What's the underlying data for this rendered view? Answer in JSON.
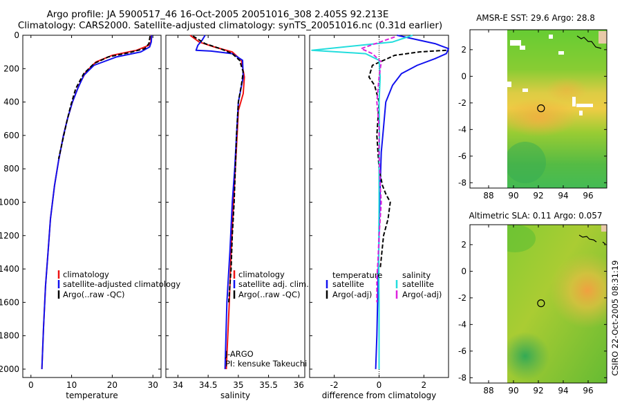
{
  "header": {
    "line1": "Argo profile: JA 5900517_46 16-Oct-2005 20051016_308 2.405S 92.213E",
    "line2": "Climatology: CARS2000. Satellite-adjusted climatology: synTS_20051016.nc (0.31d earlier)"
  },
  "side_label": "CSIRO 22-Oct-2005 08:31:19",
  "colors": {
    "red": "#ee1111",
    "blue": "#1111ee",
    "black": "#000000",
    "cyan": "#22dddd",
    "magenta": "#dd22dd"
  },
  "chart_data": [
    {
      "type": "line",
      "id": "temperature",
      "xlabel": "temperature",
      "ylabel": "",
      "xlim": [
        -2,
        32
      ],
      "ylim": [
        2050,
        0
      ],
      "y_reversed": true,
      "xticks": [
        0,
        10,
        20,
        30
      ],
      "yticks": [
        0,
        200,
        400,
        600,
        800,
        1000,
        1200,
        1400,
        1600,
        1800,
        2000
      ],
      "legend": {
        "placement": "bottom-center",
        "entries": [
          "climatology",
          "satellite-adjusted climatology",
          "Argo(..raw -QC)"
        ]
      },
      "series": [
        {
          "name": "climatology",
          "color": "red",
          "dash": false,
          "x": [
            29.6,
            29.5,
            29.0,
            26.0,
            20.0,
            16.0,
            13.5,
            11.8,
            10.2,
            9.0,
            8.0,
            6.8,
            5.8,
            4.8,
            4.2,
            3.6,
            3.1,
            2.7
          ],
          "y": [
            0,
            40,
            60,
            90,
            120,
            160,
            220,
            300,
            400,
            500,
            600,
            750,
            900,
            1100,
            1300,
            1500,
            1750,
            2000
          ]
        },
        {
          "name": "satellite-adjusted climatology",
          "color": "blue",
          "dash": false,
          "x": [
            29.7,
            29.6,
            29.2,
            27.0,
            21.0,
            15.5,
            13.0,
            11.5,
            10.2,
            9.0,
            8.0,
            6.8,
            5.8,
            4.8,
            4.2,
            3.6,
            3.1,
            2.7
          ],
          "y": [
            0,
            40,
            70,
            100,
            130,
            180,
            240,
            320,
            400,
            500,
            600,
            750,
            900,
            1100,
            1300,
            1500,
            1750,
            2000
          ]
        },
        {
          "name": "Argo(..raw -QC)",
          "color": "black",
          "dash": true,
          "x": [
            29.3,
            29.0,
            28.0,
            24.0,
            19.0,
            15.5,
            13.0,
            11.0,
            9.8,
            8.8,
            7.9,
            6.8
          ],
          "y": [
            5,
            50,
            80,
            105,
            130,
            170,
            230,
            320,
            420,
            520,
            620,
            740
          ]
        }
      ]
    },
    {
      "type": "line",
      "id": "salinity",
      "xlabel": "salinity",
      "xlim": [
        33.8,
        36.1
      ],
      "ylim": [
        2050,
        0
      ],
      "y_reversed": true,
      "xticks": [
        34,
        34.5,
        35,
        35.5,
        36
      ],
      "yticks": [],
      "legend": {
        "placement": "bottom-center",
        "entries": [
          "climatology",
          "satellite adj. clim.",
          "Argo(..raw -QC)"
        ]
      },
      "annotation": [
        "J-ARGO",
        "PI: kensuke Takeuchi"
      ],
      "series": [
        {
          "name": "climatology",
          "color": "red",
          "dash": false,
          "x": [
            34.2,
            34.35,
            34.6,
            34.9,
            35.05,
            35.1,
            35.08,
            35.0,
            34.98,
            34.95,
            34.92,
            34.88,
            34.85,
            34.8
          ],
          "y": [
            0,
            40,
            70,
            100,
            150,
            250,
            350,
            450,
            600,
            800,
            1000,
            1300,
            1600,
            2000
          ]
        },
        {
          "name": "satellite adj. clim.",
          "color": "blue",
          "dash": false,
          "x": [
            34.45,
            34.4,
            34.33,
            34.3,
            34.55,
            34.9,
            35.07,
            35.08,
            35.0,
            34.97,
            34.94,
            34.9,
            34.86,
            34.81,
            34.78
          ],
          "y": [
            0,
            30,
            60,
            90,
            95,
            110,
            150,
            250,
            400,
            600,
            800,
            1000,
            1300,
            1600,
            2000
          ]
        },
        {
          "name": "Argo(..raw -QC)",
          "color": "black",
          "dash": true,
          "x": [
            34.25,
            34.45,
            34.7,
            34.9,
            35.02,
            35.08,
            35.05,
            35.0,
            34.97,
            34.95,
            34.93,
            34.9,
            34.88,
            34.86,
            34.84
          ],
          "y": [
            5,
            50,
            80,
            110,
            150,
            220,
            300,
            400,
            600,
            800,
            1000,
            1200,
            1400,
            1500,
            1600
          ]
        }
      ]
    },
    {
      "type": "line",
      "id": "difference",
      "xlabel": "difference from climatology",
      "xlim": [
        -3.1,
        3.1
      ],
      "ylim": [
        2050,
        0
      ],
      "y_reversed": true,
      "xticks": [
        -2,
        0,
        2
      ],
      "yticks": [],
      "legend": {
        "placement": "bottom-center",
        "columns": [
          {
            "heading": "temperature",
            "entries": [
              "satellite",
              "Argo(-adj)"
            ]
          },
          {
            "heading": "salinity",
            "entries": [
              "satellite",
              "Argo(-adj)"
            ]
          }
        ]
      },
      "series": [
        {
          "name": "temperature satellite",
          "color": "blue",
          "dash": false,
          "x": [
            0.8,
            2.5,
            3.1,
            3.0,
            2.5,
            1.7,
            1.0,
            0.6,
            0.3,
            0.2,
            0.1,
            0.05,
            0.0,
            -0.05,
            -0.1,
            -0.15
          ],
          "y": [
            0,
            50,
            80,
            110,
            140,
            180,
            230,
            300,
            400,
            550,
            700,
            900,
            1200,
            1500,
            1800,
            2000
          ]
        },
        {
          "name": "temperature Argo(-adj)",
          "color": "black",
          "dash": true,
          "x": [
            3.0,
            1.8,
            0.7,
            -0.3,
            -0.45,
            -0.2,
            0.0,
            -0.1,
            0.0,
            0.15,
            0.3,
            0.5,
            0.4,
            0.2,
            0.05
          ],
          "y": [
            90,
            100,
            120,
            180,
            250,
            300,
            400,
            600,
            800,
            900,
            950,
            1000,
            1100,
            1200,
            1400
          ]
        },
        {
          "name": "salinity satellite",
          "color": "cyan",
          "dash": false,
          "x": [
            1.5,
            0.6,
            -3.0,
            -0.6,
            0.0,
            0.05,
            0.0,
            0.02,
            0.0,
            0.0,
            -0.02,
            0.0,
            0.0
          ],
          "y": [
            0,
            40,
            90,
            110,
            150,
            250,
            400,
            600,
            800,
            1000,
            1300,
            1600,
            2000
          ]
        },
        {
          "name": "salinity Argo(-adj)",
          "color": "magenta",
          "dash": true,
          "x": [
            0.7,
            -0.8,
            -0.3,
            0.1,
            0.0,
            -0.1,
            0.0,
            0.0,
            0.05,
            0.1,
            0.0,
            -0.05,
            -0.1,
            -0.1
          ],
          "y": [
            10,
            80,
            110,
            160,
            250,
            400,
            550,
            700,
            900,
            1000,
            1200,
            1350,
            1450,
            1600
          ]
        }
      ]
    },
    {
      "type": "heatmap",
      "id": "sst",
      "title": "AMSR-E SST: 29.6  Argo: 28.8",
      "xlim": [
        86.5,
        97.5
      ],
      "ylim": [
        -8.4,
        3.5
      ],
      "xticks": [
        88,
        90,
        92,
        94,
        96
      ],
      "yticks": [
        2,
        0,
        -2,
        -4,
        -6,
        -8
      ],
      "marker": {
        "lon": 92.213,
        "lat": -2.405
      },
      "data_region_lon": [
        90,
        97.5
      ]
    },
    {
      "type": "heatmap",
      "id": "sla",
      "title": "Altimetric SLA: 0.11  Argo: 0.057",
      "xlim": [
        86.5,
        97.5
      ],
      "ylim": [
        -8.4,
        3.5
      ],
      "xticks": [
        88,
        90,
        92,
        94,
        96
      ],
      "yticks": [
        2,
        0,
        -2,
        -4,
        -6,
        -8
      ],
      "marker": {
        "lon": 92.213,
        "lat": -2.405
      },
      "data_region_lon": [
        90,
        97.5
      ]
    }
  ]
}
